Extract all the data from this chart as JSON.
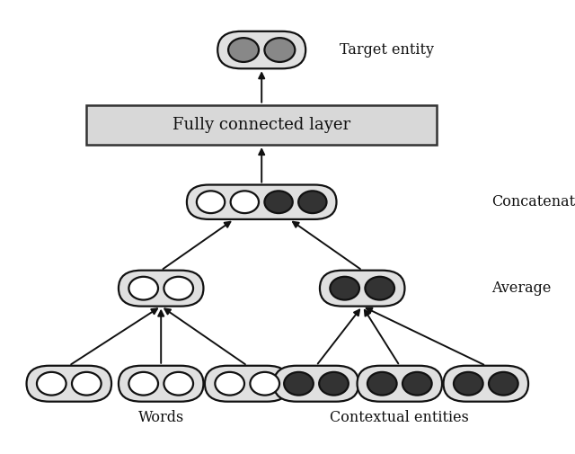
{
  "fig_width": 6.4,
  "fig_height": 5.05,
  "dpi": 100,
  "bg_color": "#ffffff",
  "node_bg_light": "#e0e0e0",
  "node_bg_dark": "#333333",
  "node_bg_gray": "#888888",
  "node_border": "#111111",
  "fc_box_bg": "#d8d8d8",
  "fc_box_border": "#333333",
  "arrow_color": "#111111",
  "text_color": "#111111",
  "labels": {
    "target_entity": "Target entity",
    "fc_layer": "Fully connected layer",
    "concatenate": "Concatenate",
    "average": "Average",
    "words": "Words",
    "contextual": "Contextual entities"
  },
  "font_size_label": 11.5,
  "font_size_fc": 13,
  "font_family": "serif",
  "xlim": [
    0,
    10
  ],
  "ylim": [
    0,
    10
  ]
}
